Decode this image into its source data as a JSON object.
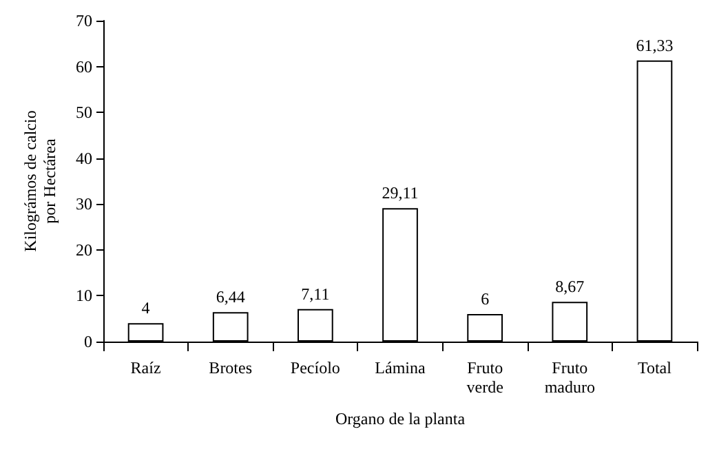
{
  "chart_data": {
    "type": "bar",
    "xlabel": "Organo de la planta",
    "ylabel": "Kilográmos de calcio\npor Hectárea",
    "categories": [
      "Raíz",
      "Brotes",
      "Pecíolo",
      "Lámina",
      "Fruto\nverde",
      "Fruto\nmaduro",
      "Total"
    ],
    "values": [
      4,
      6.44,
      7.11,
      29.11,
      6,
      8.67,
      61.33
    ],
    "value_labels": [
      "4",
      "6,44",
      "7,11",
      "29,11",
      "6",
      "8,67",
      "61,33"
    ],
    "color": "#ffffff",
    "ylim": [
      0,
      70
    ],
    "yticks": [
      0,
      10,
      20,
      30,
      40,
      50,
      60,
      70
    ]
  }
}
